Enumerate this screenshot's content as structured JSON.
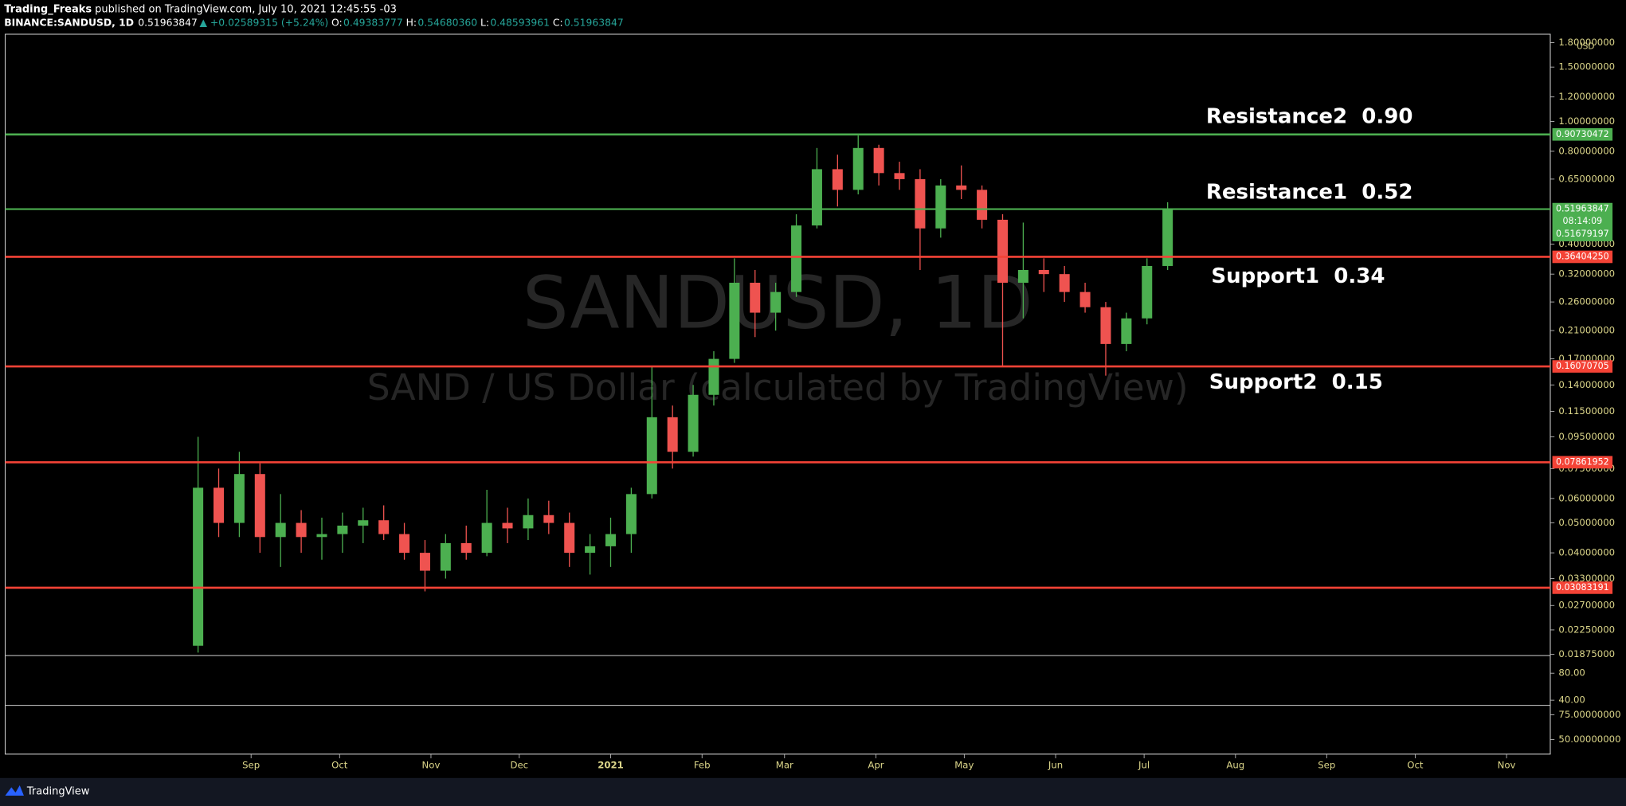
{
  "header": {
    "author": "Trading_Freaks",
    "published": "published on TradingView.com, July 10, 2021 12:45:55 -03",
    "symbol": "BINANCE:SANDUSD, 1D",
    "last": "0.51963847",
    "change": "▲ +0.02589315 (+5.24%)",
    "ohlc": [
      {
        "label": "O:",
        "value": "0.49383777"
      },
      {
        "label": "H:",
        "value": "0.54680360"
      },
      {
        "label": "L:",
        "value": "0.48593961"
      },
      {
        "label": "C:",
        "value": "0.51963847"
      }
    ]
  },
  "footer": {
    "brand": "TradingView"
  },
  "chart_data": {
    "type": "candlestick",
    "title": "SANDUSD, 1D",
    "subtitle": "SAND / US Dollar (calculated by TradingView)",
    "currency": "USD",
    "log_scale": true,
    "up_color": "#4caf50",
    "down_color": "#ef5350",
    "open": [
      0.02,
      0.065,
      0.05,
      0.072,
      0.045,
      0.05,
      0.045,
      0.046,
      0.049,
      0.051,
      0.046,
      0.04,
      0.035,
      0.043,
      0.04,
      0.05,
      0.048,
      0.053,
      0.05,
      0.04,
      0.042,
      0.046,
      0.062,
      0.11,
      0.085,
      0.13,
      0.17,
      0.3,
      0.24,
      0.28,
      0.46,
      0.7,
      0.6,
      0.82,
      0.68,
      0.65,
      0.45,
      0.62,
      0.6,
      0.48,
      0.3,
      0.33,
      0.32,
      0.28,
      0.25,
      0.19,
      0.23,
      0.34
    ],
    "high": [
      0.095,
      0.075,
      0.085,
      0.078,
      0.062,
      0.055,
      0.052,
      0.054,
      0.056,
      0.057,
      0.05,
      0.044,
      0.046,
      0.049,
      0.064,
      0.056,
      0.06,
      0.059,
      0.054,
      0.046,
      0.052,
      0.065,
      0.16,
      0.12,
      0.14,
      0.18,
      0.36,
      0.33,
      0.3,
      0.5,
      0.82,
      0.78,
      0.9,
      0.84,
      0.74,
      0.7,
      0.65,
      0.72,
      0.62,
      0.5,
      0.47,
      0.36,
      0.34,
      0.3,
      0.26,
      0.24,
      0.36,
      0.547
    ],
    "low": [
      0.019,
      0.045,
      0.045,
      0.04,
      0.036,
      0.04,
      0.038,
      0.04,
      0.043,
      0.044,
      0.038,
      0.03,
      0.033,
      0.038,
      0.039,
      0.043,
      0.044,
      0.046,
      0.036,
      0.034,
      0.036,
      0.04,
      0.06,
      0.075,
      0.082,
      0.12,
      0.165,
      0.2,
      0.21,
      0.27,
      0.45,
      0.53,
      0.58,
      0.62,
      0.6,
      0.33,
      0.42,
      0.56,
      0.45,
      0.16,
      0.23,
      0.28,
      0.26,
      0.24,
      0.15,
      0.18,
      0.22,
      0.33
    ],
    "close": [
      0.065,
      0.05,
      0.072,
      0.045,
      0.05,
      0.045,
      0.046,
      0.049,
      0.051,
      0.046,
      0.04,
      0.035,
      0.043,
      0.04,
      0.05,
      0.048,
      0.053,
      0.05,
      0.04,
      0.042,
      0.046,
      0.062,
      0.11,
      0.085,
      0.13,
      0.17,
      0.3,
      0.24,
      0.28,
      0.46,
      0.7,
      0.6,
      0.82,
      0.68,
      0.65,
      0.45,
      0.62,
      0.6,
      0.48,
      0.3,
      0.33,
      0.32,
      0.28,
      0.25,
      0.19,
      0.23,
      0.34,
      0.52
    ],
    "xlim": [
      -9.35,
      65.55
    ],
    "xticks": [
      {
        "value": 2.57,
        "label": "Sep"
      },
      {
        "value": 6.86,
        "label": "Oct"
      },
      {
        "value": 11.29,
        "label": "Nov"
      },
      {
        "value": 15.57,
        "label": "Dec"
      },
      {
        "value": 20,
        "label": "2021"
      },
      {
        "value": 24.43,
        "label": "Feb"
      },
      {
        "value": 28.43,
        "label": "Mar"
      },
      {
        "value": 32.86,
        "label": "Apr"
      },
      {
        "value": 37.14,
        "label": "May"
      },
      {
        "value": 41.57,
        "label": "Jun"
      },
      {
        "value": 45.86,
        "label": "Jul"
      },
      {
        "value": 50.29,
        "label": "Aug"
      },
      {
        "value": 54.71,
        "label": "Sep"
      },
      {
        "value": 59,
        "label": "Oct"
      },
      {
        "value": 63.43,
        "label": "Nov"
      }
    ],
    "ylim": [
      0.01858,
      1.916
    ],
    "yticks": [
      {
        "value": 1.8,
        "label": "1.80000000"
      },
      {
        "value": 1.5,
        "label": "1.50000000"
      },
      {
        "value": 1.2,
        "label": "1.20000000"
      },
      {
        "value": 1,
        "label": "1.00000000"
      },
      {
        "value": 0.8,
        "label": "0.80000000"
      },
      {
        "value": 0.65,
        "label": "0.65000000"
      },
      {
        "value": 0.4,
        "label": "0.40000000"
      },
      {
        "value": 0.32,
        "label": "0.32000000"
      },
      {
        "value": 0.26,
        "label": "0.26000000"
      },
      {
        "value": 0.21,
        "label": "0.21000000"
      },
      {
        "value": 0.17,
        "label": "0.17000000"
      },
      {
        "value": 0.14,
        "label": "0.14000000"
      },
      {
        "value": 0.115,
        "label": "0.11500000"
      },
      {
        "value": 0.095,
        "label": "0.09500000"
      },
      {
        "value": 0.075,
        "label": "0.07500000"
      },
      {
        "value": 0.06,
        "label": "0.06000000"
      },
      {
        "value": 0.05,
        "label": "0.05000000"
      },
      {
        "value": 0.04,
        "label": "0.04000000"
      },
      {
        "value": 0.033,
        "label": "0.03300000"
      },
      {
        "value": 0.027,
        "label": "0.02700000"
      },
      {
        "value": 0.0225,
        "label": "0.02250000"
      },
      {
        "value": 0.01875,
        "label": "0.01875000"
      }
    ],
    "levels": [
      {
        "value": 0.90730472,
        "label": "0.90730472",
        "color": "#4caf50"
      },
      {
        "value": 0.3640425,
        "label": "0.36404250",
        "color": "#f44336"
      },
      {
        "value": 0.16070705,
        "label": "0.16070705",
        "color": "#f44336"
      },
      {
        "value": 0.07861952,
        "label": "0.07861952",
        "color": "#f44336"
      },
      {
        "value": 0.03083191,
        "label": "0.03083191",
        "color": "#f44336"
      }
    ],
    "last_price": {
      "value": 0.51963847,
      "label": "0.51963847",
      "countdown": "08:14:09",
      "second_label": "0.51679197",
      "color": "#4caf50"
    },
    "annotations": [
      "Resistance2  0.90",
      "Resistance1  0.52",
      "Support1  0.34",
      "Support2  0.15"
    ],
    "panes": [
      {
        "ylim": [
          32.3,
          106
        ],
        "yticks": [
          {
            "value": 80,
            "label": "80.00"
          },
          {
            "value": 40,
            "label": "40.00"
          }
        ]
      },
      {
        "ylim": [
          35.4,
          84.4
        ],
        "yticks": [
          {
            "value": 75,
            "label": "75.00000000"
          },
          {
            "value": 50,
            "label": "50.00000000"
          }
        ]
      }
    ]
  }
}
